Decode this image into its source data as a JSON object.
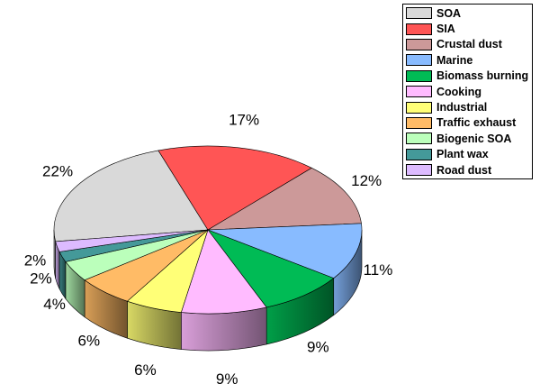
{
  "chart_data": {
    "type": "pie",
    "style": "3d",
    "legend_position": "top-right",
    "slices": [
      {
        "name": "SOA",
        "value": 22,
        "label": "22%",
        "color": "#d9d9d9"
      },
      {
        "name": "SIA",
        "value": 17,
        "label": "17%",
        "color": "#ff5555"
      },
      {
        "name": "Crustal dust",
        "value": 12,
        "label": "12%",
        "color": "#cc9999"
      },
      {
        "name": "Marine",
        "value": 11,
        "label": "11%",
        "color": "#88bbff"
      },
      {
        "name": "Biomass burning",
        "value": 9,
        "label": "9%",
        "color": "#00bb55"
      },
      {
        "name": "Cooking",
        "value": 9,
        "label": "9%",
        "color": "#ffbbff"
      },
      {
        "name": "Industrial",
        "value": 6,
        "label": "6%",
        "color": "#ffff77"
      },
      {
        "name": "Traffic exhaust",
        "value": 6,
        "label": "6%",
        "color": "#ffbb66"
      },
      {
        "name": "Biogenic SOA",
        "value": 4,
        "label": "4%",
        "color": "#bbffbb"
      },
      {
        "name": "Plant wax",
        "value": 2,
        "label": "2%",
        "color": "#449999"
      },
      {
        "name": "Road dust",
        "value": 2,
        "label": "2%",
        "color": "#ddbbff"
      }
    ]
  }
}
